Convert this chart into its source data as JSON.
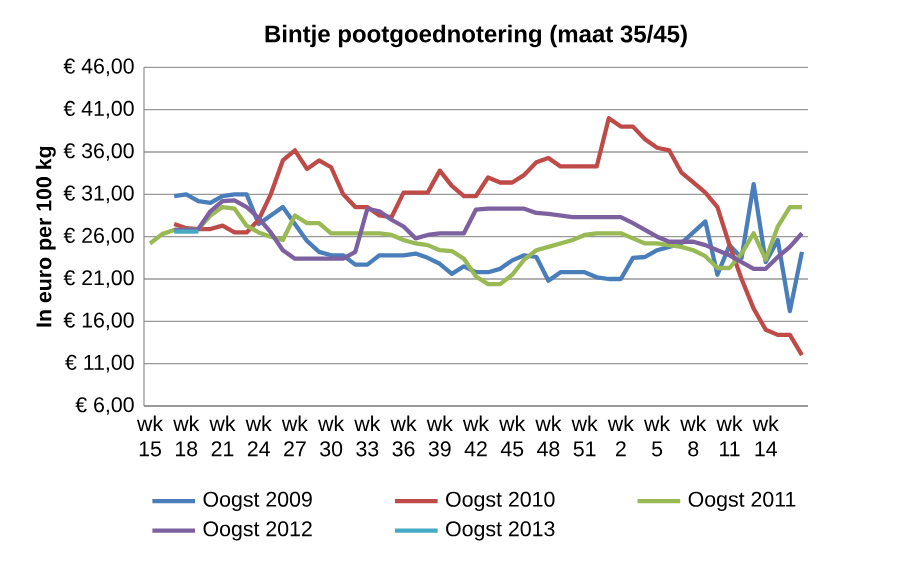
{
  "chart_data": {
    "type": "line",
    "title": "Bintje pootgoednotering (maat 35/45)",
    "ylabel": "In euro per 100 kg",
    "categories": [
      "wk 15",
      null,
      null,
      "wk 18",
      null,
      null,
      "wk 21",
      null,
      null,
      "wk 24",
      null,
      null,
      "wk 27",
      null,
      null,
      "wk 30",
      null,
      null,
      "wk 33",
      null,
      null,
      "wk 36",
      null,
      null,
      "wk 39",
      null,
      null,
      "wk 42",
      null,
      null,
      "wk 45",
      null,
      null,
      "wk 48",
      null,
      null,
      "wk 51",
      null,
      null,
      "wk 2",
      null,
      null,
      "wk 5",
      null,
      null,
      "wk 8",
      null,
      null,
      "wk 11",
      null,
      null,
      "wk 14",
      null,
      null,
      null
    ],
    "ylim": [
      6,
      46
    ],
    "yticks": [
      {
        "value": 6,
        "label": "€ 6,00"
      },
      {
        "value": 11,
        "label": "€ 11,00"
      },
      {
        "value": 16,
        "label": "€ 16,00"
      },
      {
        "value": 21,
        "label": "€ 21,00"
      },
      {
        "value": 26,
        "label": "€ 26,00"
      },
      {
        "value": 31,
        "label": "€ 31,00"
      },
      {
        "value": 36,
        "label": "€ 36,00"
      },
      {
        "value": 41,
        "label": "€ 41,00"
      },
      {
        "value": 46,
        "label": "€ 46,00"
      }
    ],
    "grid": "y",
    "legend": "bottom",
    "series": [
      {
        "name": "Oogst 2009",
        "color": "#4a7ebb",
        "values": [
          null,
          null,
          30.8,
          31.0,
          30.2,
          30.0,
          30.8,
          31.0,
          31.0,
          27.5,
          28.5,
          29.5,
          27.5,
          25.5,
          24.2,
          23.8,
          23.8,
          22.7,
          22.7,
          23.8,
          23.8,
          23.8,
          24.0,
          23.5,
          22.8,
          21.6,
          22.5,
          21.8,
          21.8,
          22.2,
          23.2,
          23.8,
          23.6,
          20.8,
          21.8,
          21.8,
          21.8,
          21.2,
          21.0,
          21.0,
          23.5,
          23.6,
          24.4,
          24.8,
          25.2,
          26.5,
          27.8,
          21.5,
          25.0,
          23.5,
          32.2,
          23.0,
          25.6,
          17.2,
          24.2
        ]
      },
      {
        "name": "Oogst 2010",
        "color": "#be4b48",
        "values": [
          null,
          null,
          27.5,
          27.0,
          26.9,
          26.9,
          27.3,
          26.5,
          26.5,
          28.0,
          31.0,
          35.0,
          36.2,
          34.0,
          35.0,
          34.2,
          31.0,
          29.5,
          29.5,
          28.5,
          28.3,
          31.2,
          31.2,
          31.2,
          33.8,
          32.0,
          30.8,
          30.8,
          33.0,
          32.4,
          32.4,
          33.3,
          34.8,
          35.3,
          34.3,
          34.3,
          34.3,
          34.3,
          40.0,
          39.0,
          39.0,
          37.5,
          36.5,
          36.2,
          33.6,
          32.4,
          31.2,
          29.5,
          25.0,
          21.0,
          17.5,
          15.0,
          14.4,
          14.4,
          12.0
        ]
      },
      {
        "name": "Oogst 2011",
        "color": "#98b954",
        "values": [
          25.2,
          26.3,
          26.8,
          26.8,
          26.9,
          28.5,
          29.5,
          29.3,
          27.3,
          26.5,
          26.0,
          25.6,
          28.5,
          27.6,
          27.6,
          26.4,
          26.4,
          26.4,
          26.4,
          26.4,
          26.2,
          25.6,
          25.2,
          25.0,
          24.4,
          24.3,
          23.4,
          21.3,
          20.4,
          20.4,
          21.5,
          23.3,
          24.4,
          24.8,
          25.2,
          25.6,
          26.2,
          26.4,
          26.4,
          26.4,
          25.8,
          25.2,
          25.2,
          25.0,
          24.8,
          24.4,
          23.7,
          22.3,
          22.3,
          24.0,
          26.4,
          23.3,
          27.2,
          29.5,
          29.5
        ]
      },
      {
        "name": "Oogst 2012",
        "color": "#7d60a0",
        "values": [
          null,
          null,
          26.8,
          26.8,
          26.9,
          29.0,
          30.2,
          30.3,
          29.5,
          28.2,
          26.5,
          24.4,
          23.4,
          23.4,
          23.4,
          23.4,
          23.4,
          24.2,
          29.3,
          29.0,
          28.0,
          27.2,
          25.8,
          26.2,
          26.4,
          26.4,
          26.4,
          29.2,
          29.3,
          29.3,
          29.3,
          29.3,
          28.8,
          28.7,
          28.5,
          28.3,
          28.3,
          28.3,
          28.3,
          28.3,
          27.6,
          26.8,
          26.0,
          25.4,
          25.4,
          25.4,
          25.0,
          24.4,
          23.8,
          23.0,
          22.2,
          22.2,
          23.6,
          24.8,
          26.4
        ]
      },
      {
        "name": "Oogst 2013",
        "color": "#46aac5",
        "values": [
          null,
          null,
          26.6,
          26.6,
          26.6,
          null,
          null,
          null,
          null,
          null,
          null,
          null,
          null,
          null,
          null,
          null,
          null,
          null,
          null,
          null,
          null,
          null,
          null,
          null,
          null,
          null,
          null,
          null,
          null,
          null,
          null,
          null,
          null,
          null,
          null,
          null,
          null,
          null,
          null,
          null,
          null,
          null,
          null,
          null,
          null,
          null,
          null,
          null,
          null,
          null,
          null,
          null,
          null,
          null,
          null
        ]
      }
    ]
  }
}
